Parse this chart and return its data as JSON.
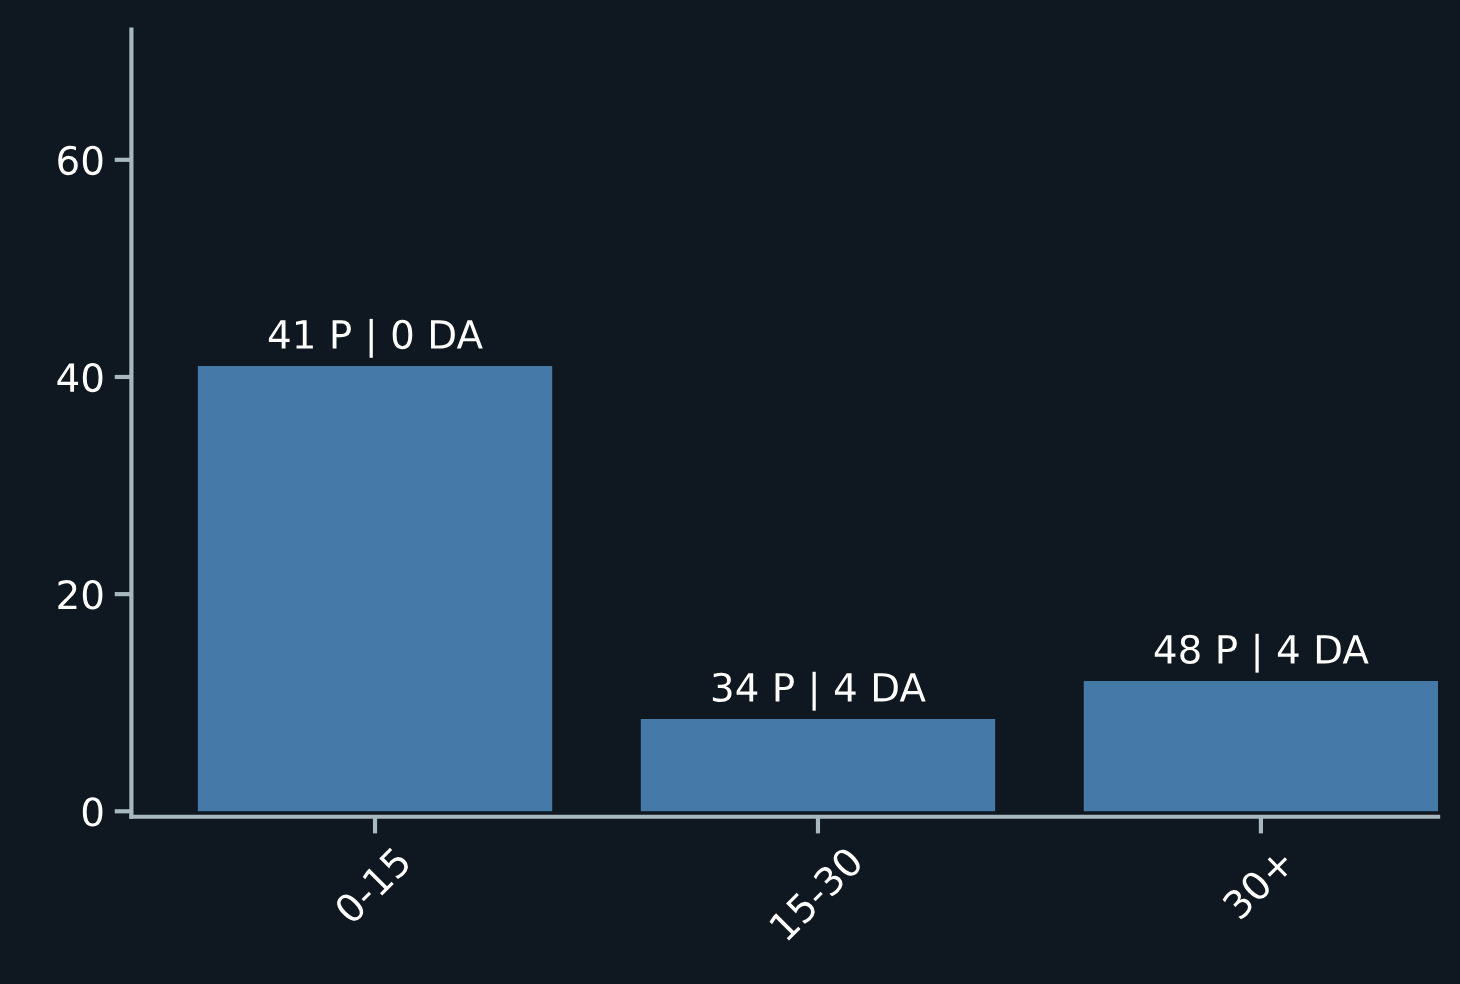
{
  "chart_data": {
    "type": "bar",
    "categories": [
      "0-15",
      "15-30",
      "30+"
    ],
    "values": [
      41,
      8.5,
      12
    ],
    "annotations": [
      {
        "text": "41 P | 0 DA",
        "x": "0-15",
        "y": 41
      },
      {
        "text": "34 P | 4 DA",
        "x": "15-30",
        "y": 8.5
      },
      {
        "text": "48 P | 4 DA",
        "x": "30+",
        "y": 12
      }
    ],
    "color": "#4579a8",
    "ylim": [
      -0.5,
      72
    ],
    "yticks": [
      0,
      20,
      40,
      60
    ],
    "grid": false,
    "legend": false
  }
}
